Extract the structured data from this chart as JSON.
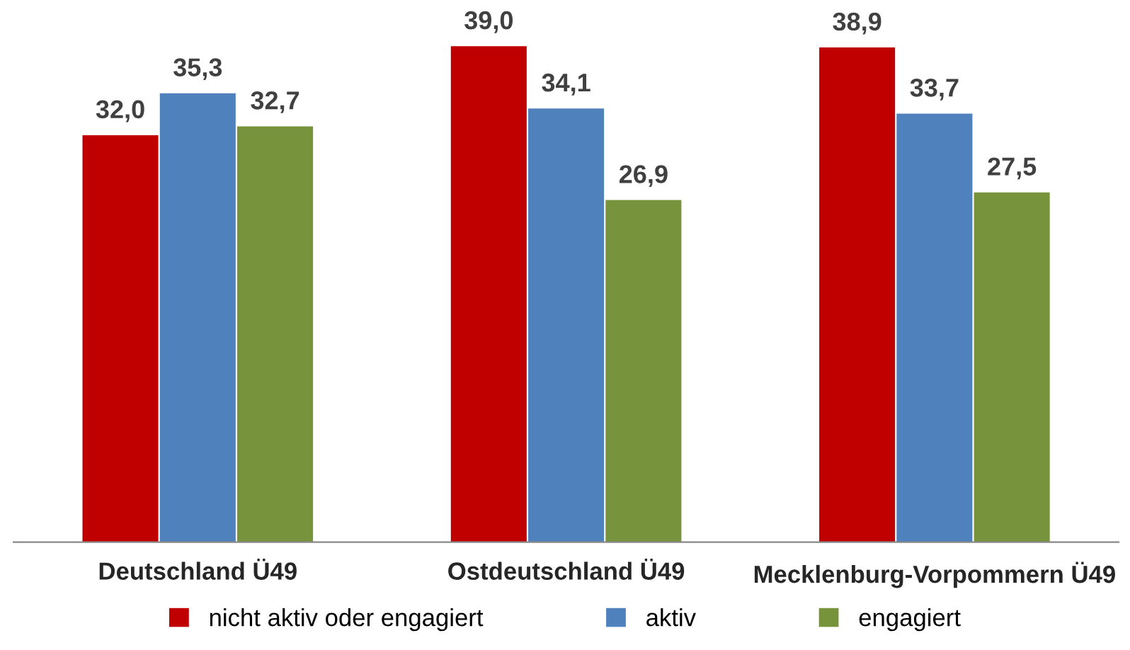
{
  "chart_data": {
    "type": "bar",
    "categories": [
      "Deutschland Ü49",
      "Ostdeutschland Ü49",
      "Mecklenburg-Vorpommern Ü49"
    ],
    "series": [
      {
        "name": "nicht aktiv oder engagiert",
        "color": "#c00000",
        "values": [
          32.0,
          39.0,
          38.9
        ],
        "value_labels": [
          "32,0",
          "39,0",
          "38,9"
        ]
      },
      {
        "name": "aktiv",
        "color": "#4f81bd",
        "values": [
          35.3,
          34.1,
          33.7
        ],
        "value_labels": [
          "35,3",
          "34,1",
          "33,7"
        ]
      },
      {
        "name": "engagiert",
        "color": "#77933c",
        "values": [
          32.7,
          26.9,
          27.5
        ],
        "value_labels": [
          "32,7",
          "26,9",
          "27,5"
        ]
      }
    ],
    "tick_labels": "x",
    "grid": false,
    "legend": "bottom"
  }
}
